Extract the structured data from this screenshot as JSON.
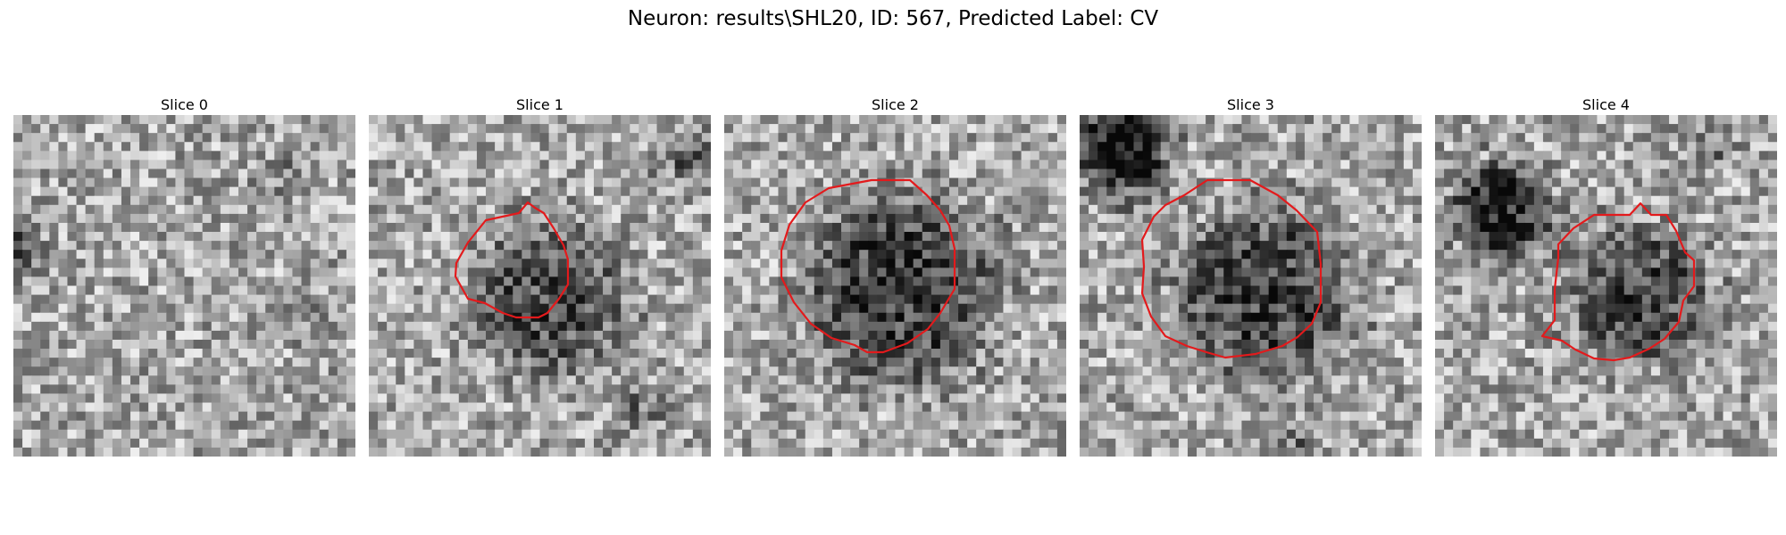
{
  "figure": {
    "title": "Neuron: results\\SHL20, ID: 567, Predicted Label: CV"
  },
  "contour_color": "#e31a1c",
  "panels": [
    {
      "label": "Slice 0",
      "has_contour": false
    },
    {
      "label": "Slice 1",
      "has_contour": true
    },
    {
      "label": "Slice 2",
      "has_contour": true
    },
    {
      "label": "Slice 3",
      "has_contour": true
    },
    {
      "label": "Slice 4",
      "has_contour": true
    }
  ]
}
